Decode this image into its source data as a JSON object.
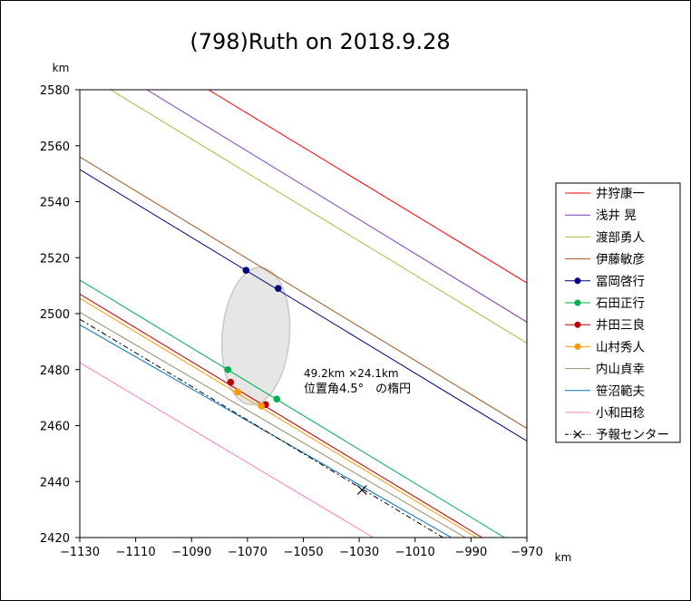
{
  "chart_data": {
    "type": "line",
    "title": "(798)Ruth on 2018.9.28",
    "xlabel": "km",
    "ylabel": "km",
    "xlim": [
      -1130,
      -970
    ],
    "ylim": [
      2420,
      2580
    ],
    "xticks": [
      -1130,
      -1110,
      -1090,
      -1070,
      -1050,
      -1030,
      -1010,
      -990,
      -970
    ],
    "yticks": [
      2420,
      2440,
      2460,
      2480,
      2500,
      2520,
      2540,
      2560,
      2580
    ],
    "xtick_labels": [
      "−1130",
      "−1110",
      "−1090",
      "−1070",
      "−1050",
      "−1030",
      "−1010",
      "−990",
      "−970"
    ],
    "ytick_labels": [
      "2420",
      "2440",
      "2460",
      "2480",
      "2500",
      "2520",
      "2540",
      "2560",
      "2580"
    ],
    "grid": false,
    "legend_position": "right",
    "series": [
      {
        "name": "井狩康一",
        "color": "#ff0000",
        "x": [
          -1084,
          -970
        ],
        "y": [
          2580,
          2511
        ],
        "markers": []
      },
      {
        "name": "浅井 晃",
        "color": "#7f3fbf",
        "x": [
          -1106,
          -970
        ],
        "y": [
          2580,
          2497
        ],
        "markers": []
      },
      {
        "name": "渡部勇人",
        "color": "#a0c040",
        "x": [
          -1119,
          -970
        ],
        "y": [
          2580,
          2489.5
        ],
        "markers": []
      },
      {
        "name": "伊藤敏彦",
        "color": "#a0521d",
        "x": [
          -1130,
          -970
        ],
        "y": [
          2556,
          2459
        ],
        "markers": []
      },
      {
        "name": "冨岡啓行",
        "color": "#000080",
        "x": [
          -1130,
          -970
        ],
        "y": [
          2551.5,
          2454.5
        ],
        "markers": [
          [
            -1070.5,
            2515.5
          ],
          [
            -1059,
            2509
          ]
        ]
      },
      {
        "name": "石田正行",
        "color": "#00b050",
        "x": [
          -1130,
          -978
        ],
        "y": [
          2512,
          2420
        ],
        "markers": [
          [
            -1077,
            2480
          ],
          [
            -1059.5,
            2469.5
          ]
        ]
      },
      {
        "name": "井田三良",
        "color": "#c00000",
        "x": [
          -1130,
          -986
        ],
        "y": [
          2507,
          2420
        ],
        "markers": [
          [
            -1076,
            2475.5
          ],
          [
            -1063.5,
            2467.5
          ]
        ]
      },
      {
        "name": "山村秀人",
        "color": "#ff9900",
        "x": [
          -1130,
          -988
        ],
        "y": [
          2505.5,
          2420
        ],
        "markers": [
          [
            -1073.5,
            2472
          ],
          [
            -1065,
            2467
          ]
        ]
      },
      {
        "name": "内山貞幸",
        "color": "#9c8a6a",
        "x": [
          -1130,
          -992
        ],
        "y": [
          2500.5,
          2420
        ],
        "markers": []
      },
      {
        "name": "笹沼範夫",
        "color": "#0070c0",
        "x": [
          -1130,
          -997
        ],
        "y": [
          2496,
          2420
        ],
        "markers": []
      },
      {
        "name": "小和田稔",
        "color": "#ff80c0",
        "x": [
          -1130,
          -1025
        ],
        "y": [
          2482.5,
          2420
        ],
        "markers": []
      }
    ],
    "center_line": {
      "name": "予報センター",
      "color": "#000000",
      "x": [
        -1130,
        -1000
      ],
      "y": [
        2498,
        2420
      ],
      "marker": [
        -1029,
        2437
      ]
    },
    "ellipse": {
      "cx": -1067,
      "cy": 2492,
      "major_km": 49.2,
      "minor_km": 24.1,
      "angle_deg": 4.5,
      "fill": "#e6e6e6",
      "stroke": "#c8c8c8"
    },
    "annotation": {
      "line1": "49.2km ×24.1km",
      "line2": "位置角4.5°　の楕円"
    }
  }
}
